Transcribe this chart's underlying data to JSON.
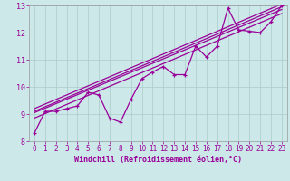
{
  "xlabel": "Windchill (Refroidissement éolien,°C)",
  "bg_color": "#cce8e8",
  "line_color": "#990099",
  "grid_color": "#aacccc",
  "xlim": [
    -0.5,
    23.5
  ],
  "ylim": [
    8,
    13
  ],
  "xticks": [
    0,
    1,
    2,
    3,
    4,
    5,
    6,
    7,
    8,
    9,
    10,
    11,
    12,
    13,
    14,
    15,
    16,
    17,
    18,
    19,
    20,
    21,
    22,
    23
  ],
  "yticks": [
    8,
    9,
    10,
    11,
    12,
    13
  ],
  "data_x": [
    0,
    1,
    2,
    3,
    4,
    5,
    6,
    7,
    8,
    9,
    10,
    11,
    12,
    13,
    14,
    15,
    16,
    17,
    18,
    19,
    20,
    21,
    22,
    23
  ],
  "data_y": [
    8.3,
    9.1,
    9.1,
    9.2,
    9.3,
    9.8,
    9.7,
    8.85,
    8.7,
    9.55,
    10.3,
    10.55,
    10.75,
    10.45,
    10.45,
    11.5,
    11.1,
    11.5,
    12.9,
    12.1,
    12.05,
    12.0,
    12.4,
    13.0
  ],
  "trend_lines": [
    {
      "x": [
        0,
        23
      ],
      "y": [
        8.85,
        12.7
      ]
    },
    {
      "x": [
        0,
        23
      ],
      "y": [
        9.05,
        12.85
      ]
    },
    {
      "x": [
        0,
        23
      ],
      "y": [
        9.1,
        12.95
      ]
    },
    {
      "x": [
        0,
        23
      ],
      "y": [
        9.2,
        13.05
      ]
    }
  ],
  "xlabel_fontsize": 6,
  "tick_fontsize": 5.5,
  "linewidth": 0.9,
  "marker_size": 3.0
}
